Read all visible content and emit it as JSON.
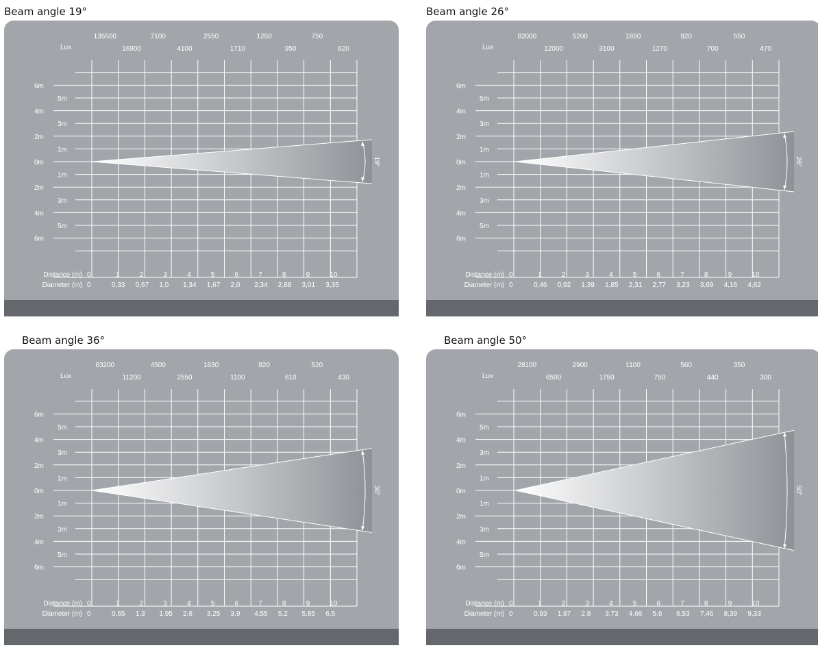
{
  "colors": {
    "panel": "#a2a6ab",
    "footer": "#64686d",
    "grid": "#ffffff",
    "text": "#ffffff",
    "title": "#111111"
  },
  "labels": {
    "lux": "Lux",
    "distance": "Distance (m)",
    "diameter": "Diameter (m)",
    "y_ticks_major": [
      "6m",
      "4m",
      "2m",
      "0m",
      "2m",
      "4m",
      "6m"
    ],
    "y_ticks_minor": [
      "5m",
      "3m",
      "1m",
      "1m",
      "3m",
      "5m"
    ]
  },
  "distances": [
    "0",
    "1",
    "2",
    "3",
    "4",
    "5",
    "6",
    "7",
    "8",
    "9",
    "10"
  ],
  "panels": [
    {
      "title": "Beam angle 19°",
      "angle": 19,
      "angle_label": "19°",
      "lux_top": [
        "135500",
        "7100",
        "2550",
        "1250",
        "750"
      ],
      "lux_bottom": [
        "16900",
        "4100",
        "1710",
        "950",
        "620"
      ],
      "diameters": [
        "0",
        "0,33",
        "0,67",
        "1,0",
        "1,34",
        "1,67",
        "2,0",
        "2,34",
        "2,68",
        "3,01",
        "3,35"
      ]
    },
    {
      "title": "Beam angle 26°",
      "angle": 26,
      "angle_label": "26°",
      "lux_top": [
        "82000",
        "5200",
        "1850",
        "920",
        "550"
      ],
      "lux_bottom": [
        "12000",
        "3100",
        "1270",
        "700",
        "470"
      ],
      "diameters": [
        "0",
        "0,46",
        "0,92",
        "1,39",
        "1,85",
        "2,31",
        "2,77",
        "3,23",
        "3,69",
        "4,16",
        "4,62"
      ]
    },
    {
      "title": "Beam angle 36°",
      "angle": 36,
      "angle_label": "36°",
      "lux_top": [
        "63200",
        "4500",
        "1630",
        "820",
        "520"
      ],
      "lux_bottom": [
        "11200",
        "2550",
        "1100",
        "610",
        "430"
      ],
      "diameters": [
        "0",
        "0,65",
        "1,3",
        "1,95",
        "2,6",
        "3,25",
        "3,9",
        "4,55",
        "5,2",
        "5,85",
        "6,5"
      ]
    },
    {
      "title": "Beam angle 50°",
      "angle": 50,
      "angle_label": "50°",
      "lux_top": [
        "28100",
        "2900",
        "1100",
        "560",
        "350"
      ],
      "lux_bottom": [
        "6500",
        "1750",
        "750",
        "440",
        "300"
      ],
      "diameters": [
        "0",
        "0,93",
        "1,87",
        "2,8",
        "3,73",
        "4,66",
        "5,6",
        "6,53",
        "7,46",
        "8,39",
        "9,33"
      ]
    }
  ]
}
